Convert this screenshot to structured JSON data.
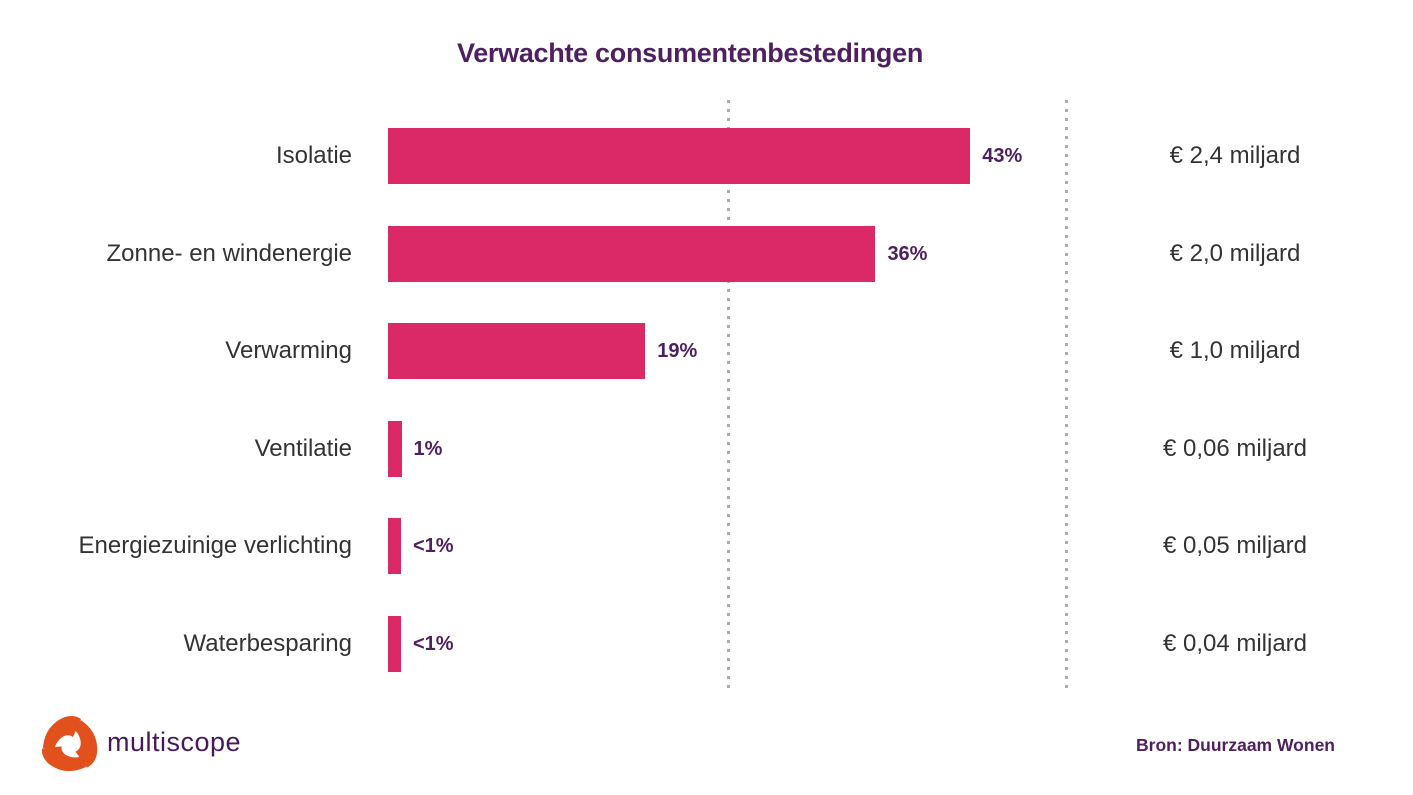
{
  "title": "Verwachte consumentenbestedingen",
  "chart_data": {
    "type": "bar",
    "orientation": "horizontal",
    "title": "Verwachte consumentenbestedingen",
    "categories": [
      "Isolatie",
      "Zonne- en windenergie",
      "Verwarming",
      "Ventilatie",
      "Energiezuinige verlichting",
      "Waterbesparing"
    ],
    "rows": [
      {
        "label": "Isolatie",
        "pct_label": "43%",
        "pct": 43,
        "amount": "€ 2,4 miljard"
      },
      {
        "label": "Zonne- en windenergie",
        "pct_label": "36%",
        "pct": 36,
        "amount": "€ 2,0 miljard"
      },
      {
        "label": "Verwarming",
        "pct_label": "19%",
        "pct": 19,
        "amount": "€ 1,0 miljard"
      },
      {
        "label": "Ventilatie",
        "pct_label": "1%",
        "pct": 1,
        "amount": "€ 0,06 miljard"
      },
      {
        "label": "Energiezuinige verlichting",
        "pct_label": "<1%",
        "pct": 0.9,
        "amount": "€ 0,05 miljard"
      },
      {
        "label": "Waterbesparing",
        "pct_label": "<1%",
        "pct": 0.9,
        "amount": "€ 0,04 miljard"
      }
    ],
    "xlim": [
      0,
      50
    ],
    "gridlines_pct": [
      25,
      50
    ],
    "grid_style": "dotted-vertical",
    "legend": false,
    "bar_color": "#DB2968",
    "value_label_color": "#4F2060"
  },
  "footer": {
    "logo_text": "multiscope",
    "source": "Bron: Duurzaam Wonen"
  },
  "colors": {
    "bar": "#DB2968",
    "title_purple": "#4F2060",
    "text_dark": "#333332",
    "grid": "#ABABAB",
    "logo_orange": "#E2511C",
    "logo_pink": "#D2236B",
    "logo_blue": "#29AEE3"
  }
}
